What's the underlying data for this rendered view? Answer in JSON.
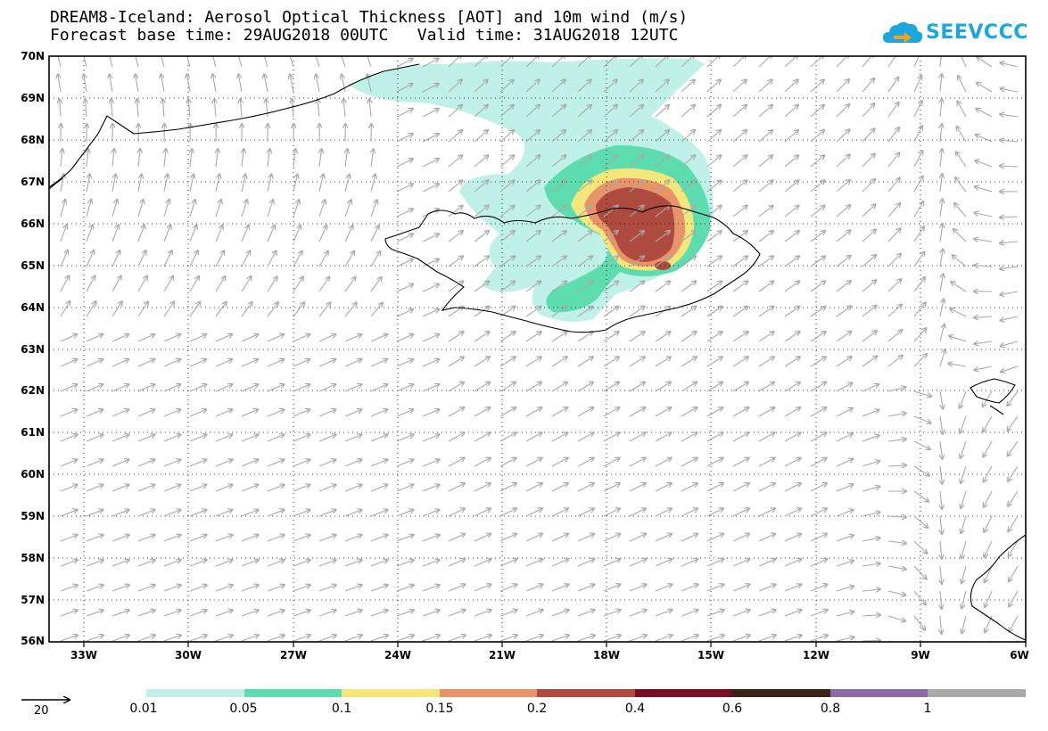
{
  "title": {
    "line1": "DREAM8-Iceland: Aerosol Optical Thickness [AOT] and 10m wind (m/s)",
    "line2": "Forecast base time: 29AUG2018 00UTC   Valid time: 31AUG2018 12UTC"
  },
  "logo": {
    "text": "SEEVCCC",
    "color": "#1aa7e0"
  },
  "lat_labels": [
    "70N",
    "69N",
    "68N",
    "67N",
    "66N",
    "65N",
    "64N",
    "63N",
    "62N",
    "61N",
    "60N",
    "59N",
    "58N",
    "57N",
    "56N"
  ],
  "lon_labels": [
    "33W",
    "30W",
    "27W",
    "24W",
    "21W",
    "18W",
    "15W",
    "12W",
    "9W",
    "6W"
  ],
  "wind_reference": {
    "value": "20"
  },
  "colorbar": {
    "labels": [
      "0.01",
      "0.05",
      "0.1",
      "0.15",
      "0.2",
      "0.4",
      "0.6",
      "0.8",
      "1"
    ],
    "colors": [
      "#bff1e8",
      "#5ddcb0",
      "#f3e67a",
      "#e8946a",
      "#ae4a3e",
      "#7a0c24",
      "#3a2414",
      "#8e6aa6",
      "#a9a9a9"
    ]
  },
  "wind_arrow_color": "#a9a9a9",
  "coastline_color": "#000000"
}
